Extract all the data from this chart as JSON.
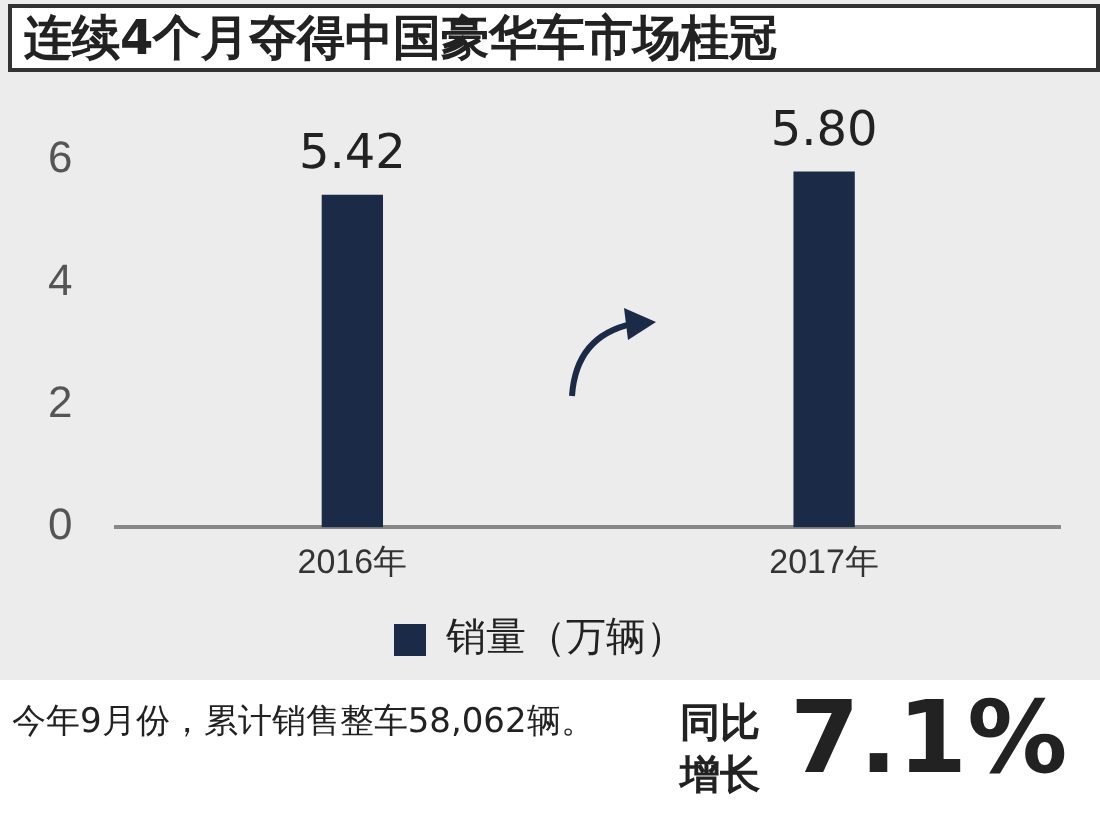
{
  "chart_data": {
    "type": "bar",
    "title": "连续4个月夺得中国豪华车市场桂冠",
    "categories": [
      "2016年",
      "2017年"
    ],
    "series": [
      {
        "name": "销量（万辆）",
        "color": "#1b2a47",
        "values": [
          5.42,
          5.8
        ],
        "value_labels": [
          "5.42",
          "5.80"
        ]
      }
    ],
    "ylim": [
      0,
      6
    ],
    "yticks": [
      0,
      2,
      4,
      6
    ],
    "grid": false,
    "legend": "bottom",
    "annotations": [
      "今年9月份，累计销售整车58,062辆。",
      "同比增长",
      "7.1%"
    ]
  }
}
